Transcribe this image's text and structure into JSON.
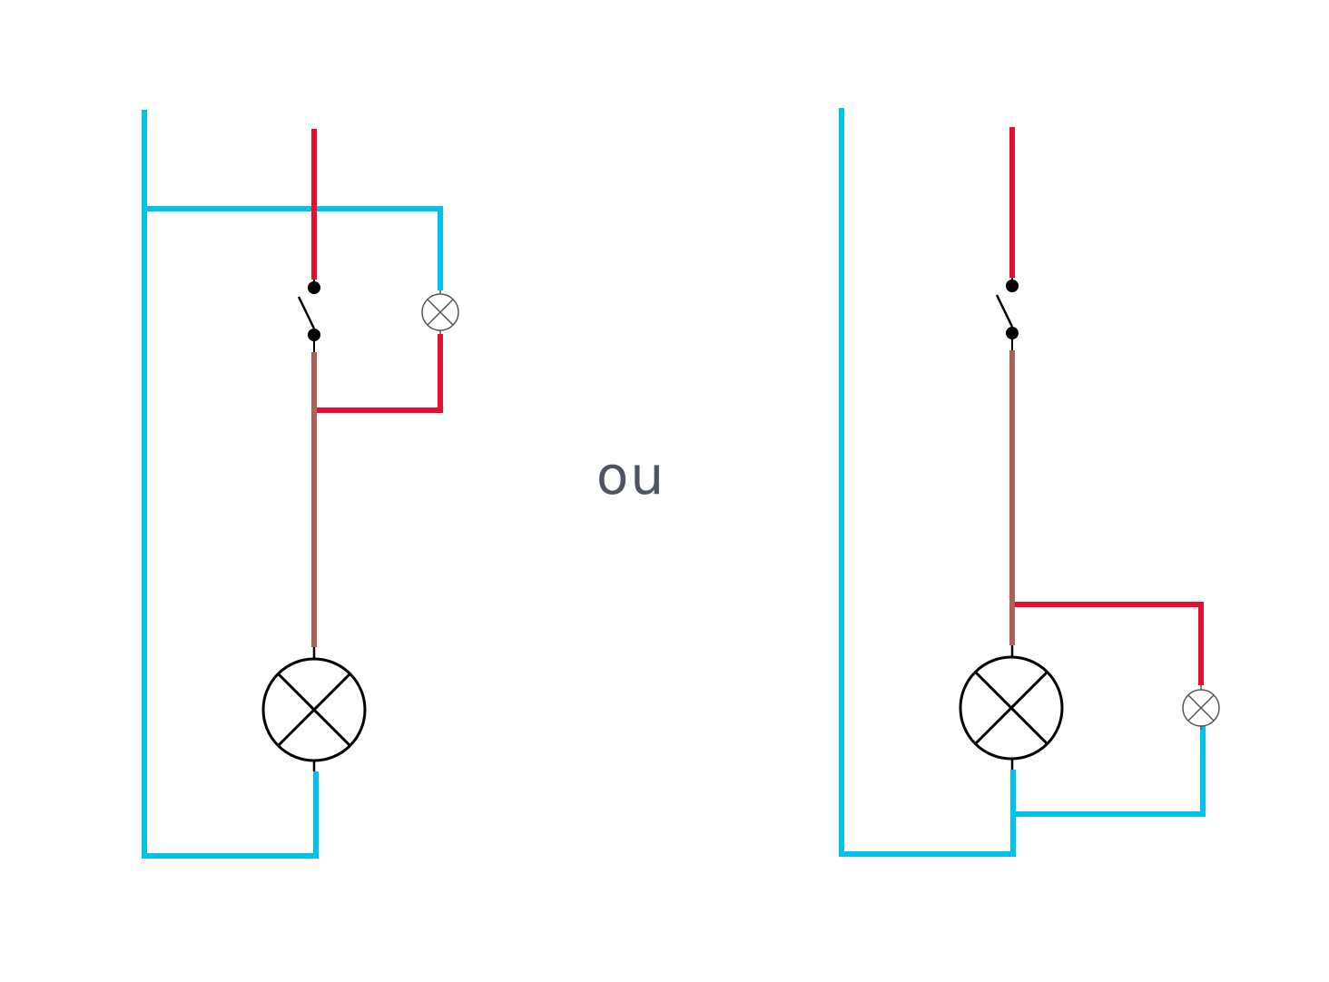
{
  "separator_text": "ou",
  "colors": {
    "neutral_wire": "#00c3ec",
    "phase_wire": "#ec0c2e",
    "return_wire": "#a8635b",
    "symbol_stroke": "#000000",
    "small_lamp_stroke": "#555555",
    "text": "#4f5560",
    "background": "#ffffff"
  },
  "left_circuit": {
    "wires": [
      "neutral",
      "phase",
      "return",
      "phase-to-pilot-lamp",
      "neutral-to-pilot-lamp"
    ],
    "switch": "single-pole-switch",
    "lamp": "main-lamp",
    "pilot_lamp": "indicator-lamp-in-parallel-with-switch"
  },
  "right_circuit": {
    "wires": [
      "neutral",
      "phase",
      "return",
      "return-to-pilot-lamp",
      "neutral-to-pilot-lamp"
    ],
    "switch": "single-pole-switch",
    "lamp": "main-lamp",
    "pilot_lamp": "indicator-lamp-in-parallel-with-main-lamp"
  }
}
